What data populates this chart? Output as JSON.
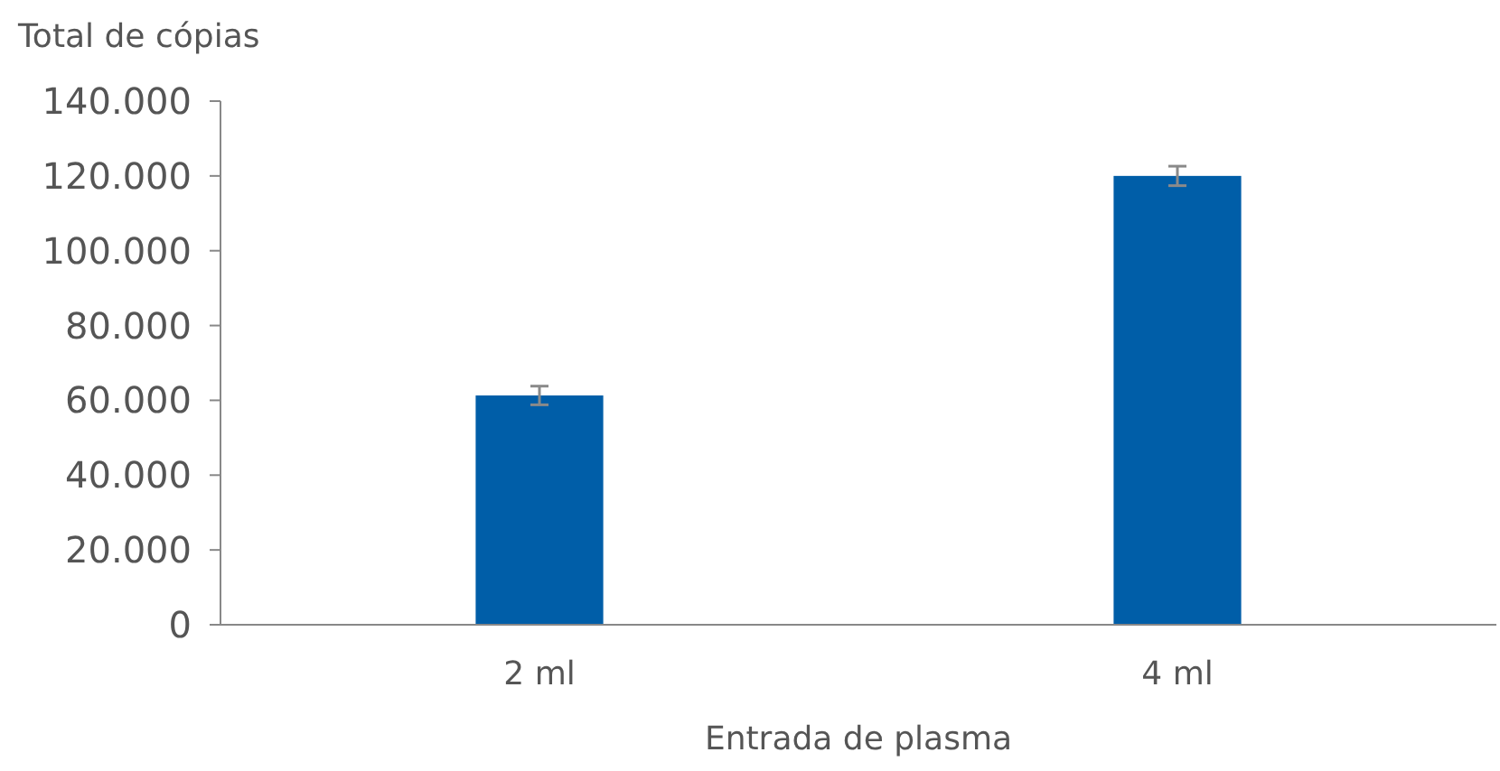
{
  "chart_data": {
    "type": "bar",
    "ylabel": "Total de cópias",
    "xlabel": "Entrada de plasma",
    "categories": [
      "2 ml",
      "4 ml"
    ],
    "values": [
      61300,
      120000
    ],
    "errors": [
      2500,
      2600
    ],
    "color": "#005ea8",
    "ylim": [
      0,
      140000
    ],
    "yticks": [
      {
        "value": 0,
        "label": "0"
      },
      {
        "value": 20000,
        "label": "20.000"
      },
      {
        "value": 40000,
        "label": "40.000"
      },
      {
        "value": 60000,
        "label": "60.000"
      },
      {
        "value": 80000,
        "label": "80.000"
      },
      {
        "value": 100000,
        "label": "100.000"
      },
      {
        "value": 120000,
        "label": "120.000"
      },
      {
        "value": 140000,
        "label": "140.000"
      }
    ],
    "grid": false
  }
}
